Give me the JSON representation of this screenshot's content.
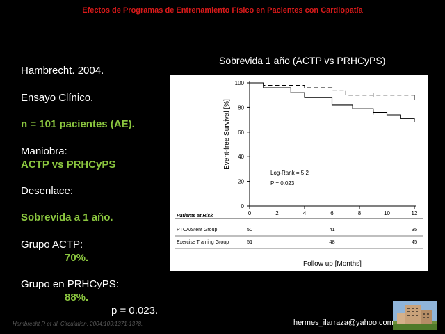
{
  "slide": {
    "title": "Efectos de Programas de Entrenamiento Físico en Pacientes con Cardiopatía",
    "study": "Hambrecht. 2004.",
    "design": "Ensayo Clínico.",
    "sample": "n = 101 pacientes (AE).",
    "maneuver_label": "Maniobra:",
    "maneuver_value": "ACTP vs PRHCyPS",
    "outcome_label": "Desenlace:",
    "outcome_value": "Sobrevida a 1 año.",
    "group1_label": "Grupo ACTP:",
    "group1_value": "70%.",
    "group2_label": "Grupo en PRHCyPS:",
    "group2_value": "88%.",
    "p_value": "p = 0.023.",
    "chart_heading": "Sobrevida 1 año (ACTP vs PRHCyPS)",
    "citation": "Hambrecht R et al. Circulation. 2004;109:1371-1378.",
    "email": "hermes_ilarraza@yahoo.com",
    "colors": {
      "title": "#d91a1a",
      "accent": "#8bc63f",
      "background": "#000000"
    },
    "thumbnail_icon": "hospital-building-photo"
  },
  "chart_data": {
    "type": "line",
    "xlabel": "Follow up [Months]",
    "ylabel": "Event-free Survival [%]",
    "xlim": [
      0,
      12
    ],
    "ylim": [
      0,
      100
    ],
    "xticks": [
      0,
      2,
      4,
      6,
      8,
      10,
      12
    ],
    "yticks": [
      0,
      20,
      40,
      60,
      80,
      100
    ],
    "annotations": [
      "Log-Rank = 5.2",
      "P = 0.023"
    ],
    "series": [
      {
        "name": "PTCA/Stent Group",
        "style": "solid",
        "x": [
          0,
          1,
          1,
          3,
          3,
          4,
          4,
          6,
          6,
          7.5,
          7.5,
          9,
          9,
          10,
          10,
          11,
          11,
          12,
          12
        ],
        "y": [
          100,
          100,
          96,
          96,
          92,
          92,
          88,
          88,
          82,
          82,
          79,
          79,
          76,
          76,
          74,
          74,
          71,
          71,
          70
        ]
      },
      {
        "name": "Exercise Training Group",
        "style": "dashed",
        "x": [
          0,
          1,
          1,
          4,
          4,
          6,
          6,
          7,
          7,
          9,
          9,
          12,
          12
        ],
        "y": [
          100,
          100,
          98,
          98,
          96,
          96,
          94,
          94,
          90,
          90,
          90,
          90,
          88
        ]
      }
    ],
    "censor_marks": [
      {
        "series": 0,
        "x": 6,
        "y": 82
      },
      {
        "series": 0,
        "x": 9,
        "y": 76
      },
      {
        "series": 0,
        "x": 12,
        "y": 70
      },
      {
        "series": 1,
        "x": 6,
        "y": 94
      },
      {
        "series": 1,
        "x": 9,
        "y": 90
      },
      {
        "series": 1,
        "x": 12,
        "y": 88
      }
    ],
    "risk_table": {
      "header": "Patients at Risk",
      "columns": [
        0,
        6,
        12
      ],
      "rows": [
        {
          "label": "PTCA/Stent Group",
          "values": [
            "50",
            "41",
            "35"
          ]
        },
        {
          "label": "Exercise Training Group",
          "values": [
            "51",
            "48",
            "45"
          ]
        }
      ]
    }
  }
}
